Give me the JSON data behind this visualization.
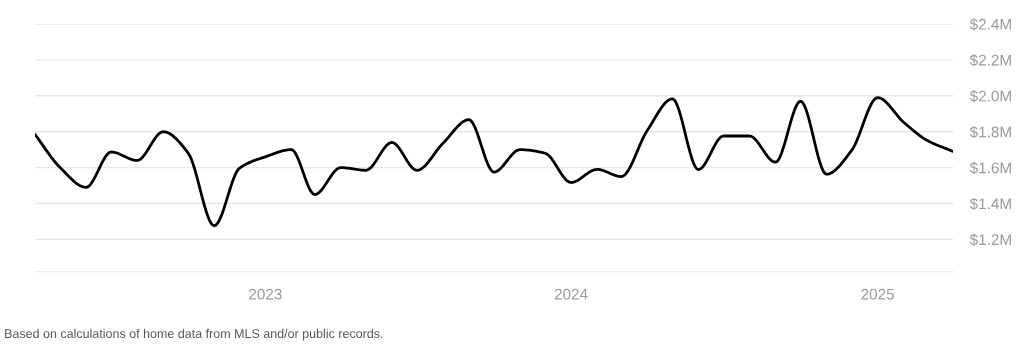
{
  "chart_data": {
    "type": "line",
    "x": [
      "2022-04",
      "2022-05",
      "2022-06",
      "2022-07",
      "2022-08",
      "2022-09",
      "2022-10",
      "2022-11",
      "2022-12",
      "2023-01",
      "2023-02",
      "2023-03",
      "2023-04",
      "2023-05",
      "2023-06",
      "2023-07",
      "2023-08",
      "2023-09",
      "2023-10",
      "2023-11",
      "2023-12",
      "2024-01",
      "2024-02",
      "2024-03",
      "2024-04",
      "2024-05",
      "2024-06",
      "2024-07",
      "2024-08",
      "2024-09",
      "2024-10",
      "2024-11",
      "2024-12",
      "2025-01",
      "2025-02",
      "2025-03",
      "2025-04"
    ],
    "series": [
      {
        "color": "#000000",
        "values": [
          1.785,
          1.6,
          1.49,
          1.687,
          1.64,
          1.8,
          1.68,
          1.276,
          1.596,
          1.66,
          1.7,
          1.45,
          1.6,
          1.585,
          1.74,
          1.585,
          1.735,
          1.867,
          1.575,
          1.7,
          1.68,
          1.517,
          1.59,
          1.55,
          1.807,
          1.983,
          1.589,
          1.776,
          1.776,
          1.63,
          1.97,
          1.563,
          1.696,
          1.99,
          1.853,
          1.752,
          1.69
        ]
      }
    ],
    "xlim": [
      "2022-04",
      "2025-04"
    ],
    "xticks": [
      {
        "value": "2023-01",
        "label": "2023"
      },
      {
        "value": "2024-01",
        "label": "2024"
      },
      {
        "value": "2025-01",
        "label": "2025"
      }
    ],
    "ylim": [
      1.02,
      2.4
    ],
    "yticks": [
      {
        "value": 1.2,
        "label": "$1.2M"
      },
      {
        "value": 1.4,
        "label": "$1.4M"
      },
      {
        "value": 1.6,
        "label": "$1.6M"
      },
      {
        "value": 1.8,
        "label": "$1.8M"
      },
      {
        "value": 2.0,
        "label": "$2.0M"
      },
      {
        "value": 2.2,
        "label": "$2.2M"
      },
      {
        "value": 2.4,
        "label": "$2.4M"
      }
    ],
    "grid": "y",
    "marker": "none",
    "line_style": "solid",
    "annotations": [
      "Based on calculations of home data from MLS and/or public records."
    ]
  }
}
